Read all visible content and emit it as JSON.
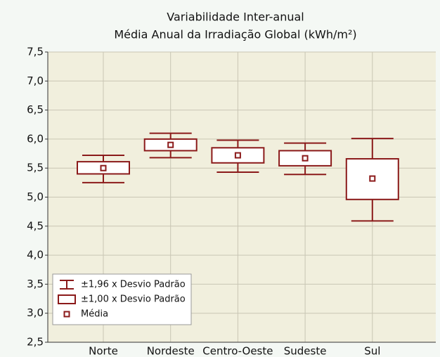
{
  "chart_data": {
    "type": "box",
    "title": "Variabilidade Inter-anual",
    "subtitle": "Média Anual da Irradiação Global (kWh/m²)",
    "categories": [
      "Norte",
      "Nordeste",
      "Centro-Oeste",
      "Sudeste",
      "Sul"
    ],
    "series": [
      {
        "name": "±1,96 x Desvio Padrão",
        "role": "whisker",
        "low": [
          5.25,
          5.68,
          5.43,
          5.39,
          4.59
        ],
        "high": [
          5.72,
          6.1,
          5.98,
          5.93,
          6.01
        ]
      },
      {
        "name": "±1,00 x Desvio Padrão",
        "role": "box",
        "low": [
          5.4,
          5.8,
          5.59,
          5.54,
          4.96
        ],
        "high": [
          5.61,
          6.0,
          5.85,
          5.8,
          5.66
        ]
      },
      {
        "name": "Média",
        "role": "mean",
        "values": [
          5.5,
          5.9,
          5.72,
          5.67,
          5.32
        ]
      }
    ],
    "color": "#8b1a1a",
    "ylim": [
      2.5,
      7.5
    ],
    "yticks": [
      {
        "value": 2.5,
        "label": "2,5"
      },
      {
        "value": 3,
        "label": "3,0"
      },
      {
        "value": 3.5,
        "label": "3,5"
      },
      {
        "value": 4,
        "label": "4,0"
      },
      {
        "value": 4.5,
        "label": "4,5"
      },
      {
        "value": 5,
        "label": "5,0"
      },
      {
        "value": 5.5,
        "label": "5,5"
      },
      {
        "value": 6,
        "label": "6,0"
      },
      {
        "value": 6.5,
        "label": "6,5"
      },
      {
        "value": 7,
        "label": "7,0"
      },
      {
        "value": 7.5,
        "label": "7,5"
      }
    ],
    "grid": true,
    "legend": "bottom-left"
  }
}
